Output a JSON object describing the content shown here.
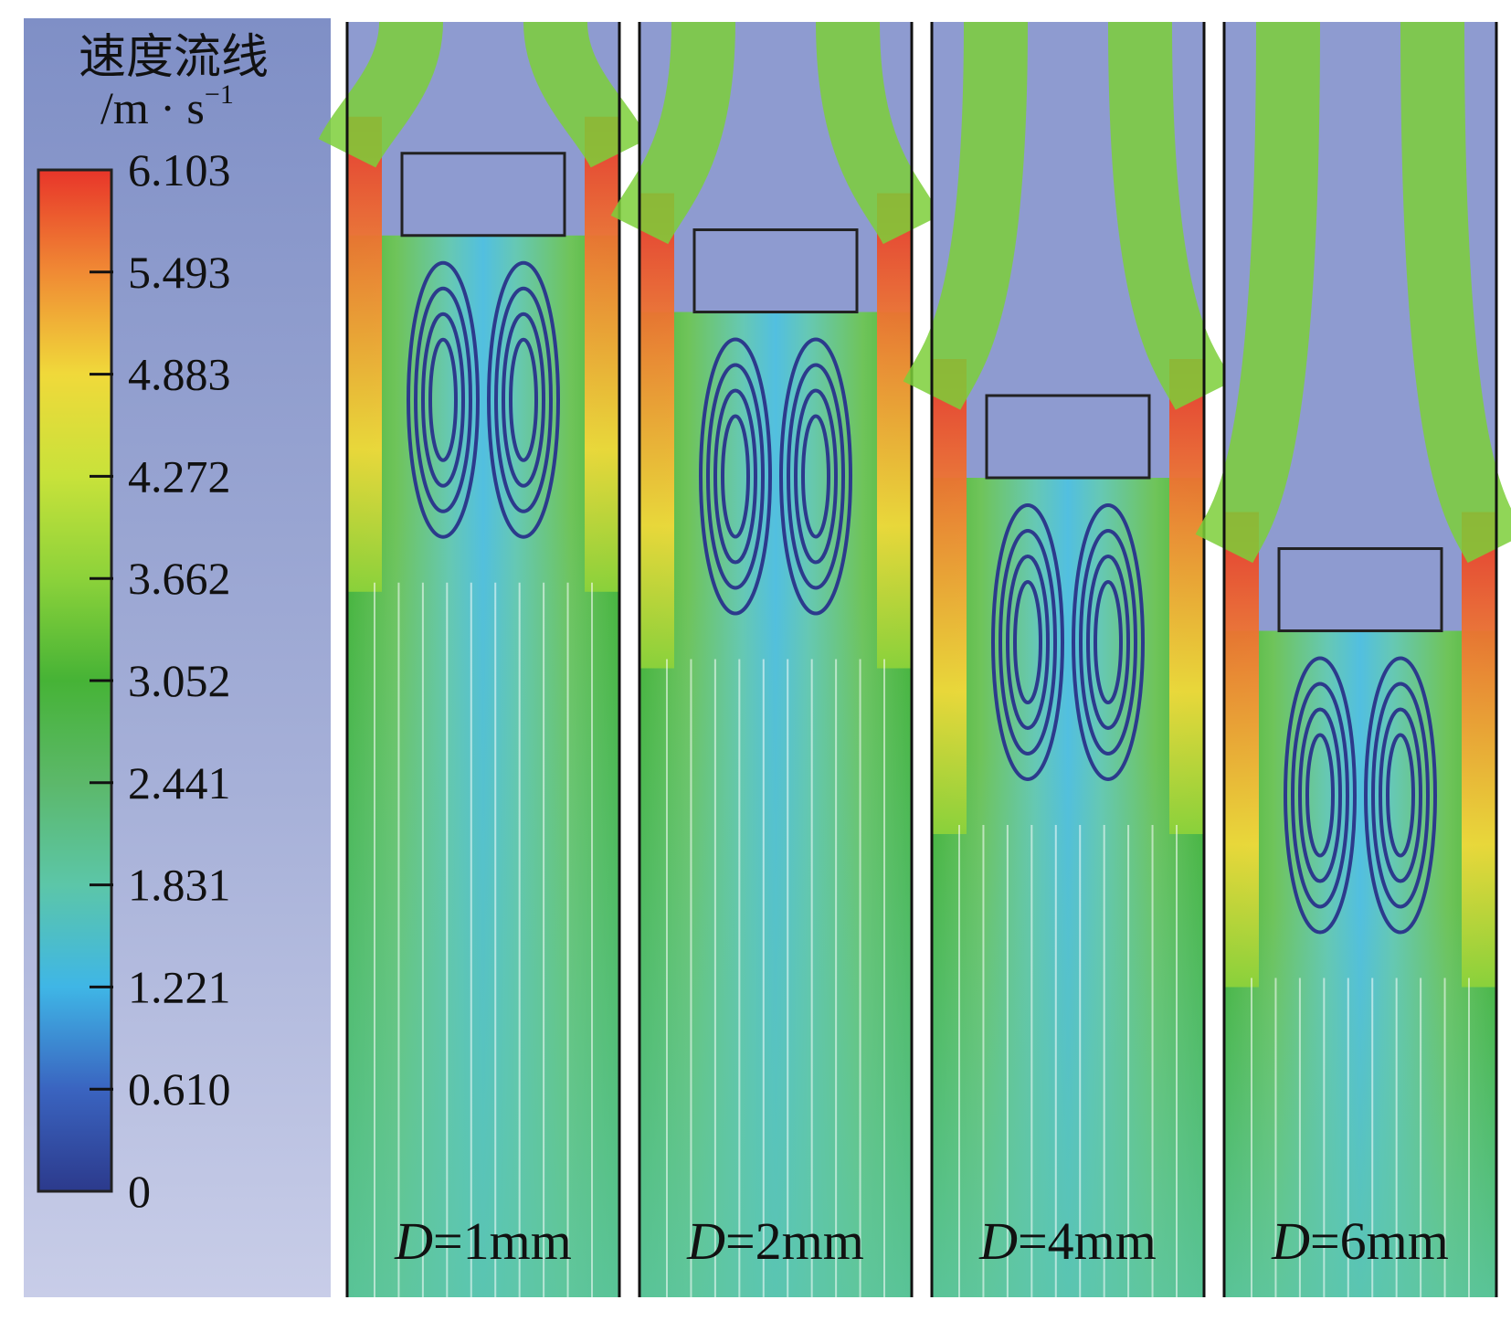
{
  "chart_data": {
    "type": "heatmap",
    "legend": {
      "title": "速度流线",
      "unit_prefix": "/m · s",
      "unit_exp": "−1",
      "ticks": [
        "6.103",
        "5.493",
        "4.883",
        "4.272",
        "3.662",
        "3.052",
        "2.441",
        "1.831",
        "1.221",
        "0.610",
        "0"
      ],
      "colors": [
        "#e8352a",
        "#f08a34",
        "#f0d93a",
        "#c8e23a",
        "#8cd23a",
        "#46b336",
        "#5cb86a",
        "#5cc6a8",
        "#3fb6e6",
        "#3a64c0",
        "#2c3a8c"
      ]
    },
    "panels": [
      {
        "var": "D",
        "value": "=1mm",
        "block_depth": 0.06
      },
      {
        "var": "D",
        "value": "=2mm",
        "block_depth": 0.12
      },
      {
        "var": "D",
        "value": "=4mm",
        "block_depth": 0.25
      },
      {
        "var": "D",
        "value": "=6mm",
        "block_depth": 0.37
      }
    ]
  }
}
